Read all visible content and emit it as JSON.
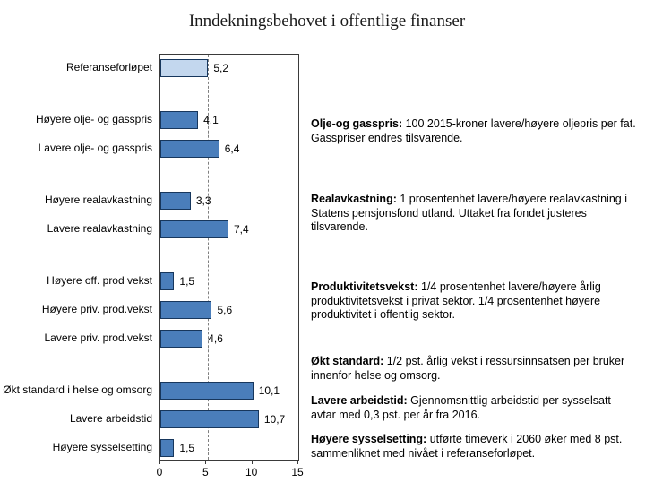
{
  "colors": {
    "bar_fill": "#4a7ebb",
    "bar_border": "#17375d",
    "reference_fill": "#c3d7ee",
    "dashed_line": "#7f7f7f"
  },
  "chart_data": {
    "type": "bar",
    "orientation": "horizontal",
    "title": "Inndekningsbehovet i offentlige finanser",
    "xlabel": "",
    "ylabel": "",
    "xlim": [
      0,
      15
    ],
    "x_ticks": [
      "0",
      "5",
      "10",
      "15"
    ],
    "grid": false,
    "reference_line_x": 5.2,
    "bars": [
      {
        "label": "Referanseforløpet",
        "value": 5.2,
        "display": "5,2",
        "group": 0,
        "highlight": true
      },
      {
        "label": "Høyere olje- og gasspris",
        "value": 4.1,
        "display": "4,1",
        "group": 1,
        "highlight": false
      },
      {
        "label": "Lavere olje- og gasspris",
        "value": 6.4,
        "display": "6,4",
        "group": 1,
        "highlight": false
      },
      {
        "label": "Høyere realavkastning",
        "value": 3.3,
        "display": "3,3",
        "group": 2,
        "highlight": false
      },
      {
        "label": "Lavere realavkastning",
        "value": 7.4,
        "display": "7,4",
        "group": 2,
        "highlight": false
      },
      {
        "label": "Høyere off. prod vekst",
        "value": 1.5,
        "display": "1,5",
        "group": 3,
        "highlight": false
      },
      {
        "label": "Høyere priv. prod.vekst",
        "value": 5.6,
        "display": "5,6",
        "group": 3,
        "highlight": false
      },
      {
        "label": "Lavere priv. prod.vekst",
        "value": 4.6,
        "display": "4,6",
        "group": 3,
        "highlight": false
      },
      {
        "label": "Økt standard i helse og omsorg",
        "value": 10.1,
        "display": "10,1",
        "group": 4,
        "highlight": false
      },
      {
        "label": "Lavere arbeidstid",
        "value": 10.7,
        "display": "10,7",
        "group": 4,
        "highlight": false
      },
      {
        "label": "Høyere sysselsetting",
        "value": 1.5,
        "display": "1,5",
        "group": 4,
        "highlight": false
      }
    ]
  },
  "annotations": [
    {
      "lead": "Olje-og gasspris:",
      "text": "100 2015-kroner lavere/høyere oljepris per fat. Gasspriser endres tilsvarende."
    },
    {
      "lead": "Realavkastning:",
      "text": "1 prosentenhet lavere/høyere realavkastning i Statens pensjonsfond utland. Uttaket fra fondet justeres tilsvarende."
    },
    {
      "lead": "Produktivitetsvekst:",
      "text": "1/4 prosentenhet lavere/høyere årlig produktivitetsvekst i privat sektor. 1/4 prosentenhet høyere produktivitet i offentlig sektor."
    },
    {
      "lead": "Økt standard:",
      "text": "1/2 pst. årlig vekst i ressursinnsatsen per bruker innenfor helse og omsorg."
    },
    {
      "lead": "Lavere arbeidstid:",
      "text": "Gjennomsnittlig arbeidstid per sysselsatt avtar med 0,3 pst. per år fra 2016."
    },
    {
      "lead": "Høyere sysselsetting:",
      "text": "utførte timeverk i 2060 øker med 8 pst. sammenliknet med nivået i referanseforløpet."
    }
  ]
}
